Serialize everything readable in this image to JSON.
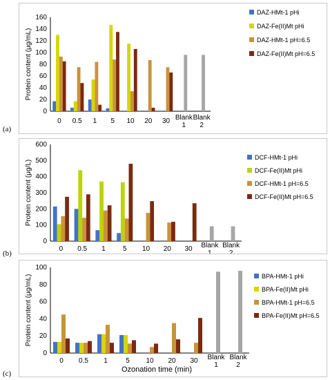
{
  "chart_data": [
    {
      "type": "bar",
      "panel_label": "(a)",
      "ylabel": "Protein content (μg/mL)",
      "xlabel": "",
      "ylim": [
        0,
        160
      ],
      "yticks": [
        0,
        20,
        40,
        60,
        80,
        100,
        120,
        140,
        160
      ],
      "categories": [
        "0",
        "0.5",
        "1",
        "5",
        "10",
        "20",
        "30",
        "Blank 1",
        "Blank 2"
      ],
      "series": [
        {
          "name": "DAZ-HMt-1 pHi",
          "color": "#4472C4",
          "values": [
            17,
            6,
            20,
            5,
            null,
            null,
            null,
            null,
            null
          ]
        },
        {
          "name": "DAZ-Fe(II)Mt pHi",
          "color": "#D6D600",
          "values": [
            130,
            17,
            54,
            147,
            115,
            null,
            null,
            null,
            null
          ]
        },
        {
          "name": "DAZ-HMt-1 pH=6.5",
          "color": "#C9933B",
          "values": [
            93,
            75,
            84,
            88,
            34,
            87,
            75,
            96,
            96
          ]
        },
        {
          "name": "DAZ-Fe(II)Mt pH=6.5",
          "color": "#7B2A10",
          "values": [
            85,
            48,
            11,
            135,
            106,
            6,
            66,
            null,
            null
          ]
        }
      ]
    },
    {
      "type": "bar",
      "panel_label": "(b)",
      "ylabel": "Protein content (μg/L)",
      "xlabel": "",
      "ylim": [
        0,
        600
      ],
      "yticks": [
        0,
        100,
        200,
        300,
        400,
        500,
        600
      ],
      "categories": [
        "0",
        "0.5",
        "1",
        "5",
        "10",
        "20",
        "30",
        "Blank 1",
        "Blank 2"
      ],
      "series": [
        {
          "name": "DCF-HMt-1 pHi",
          "color": "#4472C4",
          "values": [
            215,
            200,
            68,
            50,
            null,
            null,
            null,
            null,
            null
          ]
        },
        {
          "name": "DCF-Fe(II)Mt pHi",
          "color": "#BCD400",
          "values": [
            105,
            440,
            370,
            365,
            null,
            null,
            null,
            null,
            null
          ]
        },
        {
          "name": "DCF-HMt-1 pH=6.5",
          "color": "#C9933B",
          "values": [
            155,
            145,
            190,
            140,
            175,
            115,
            null,
            92,
            92
          ]
        },
        {
          "name": "DCF-Fe(II)Mt pH=6.5",
          "color": "#7B2A10",
          "values": [
            275,
            290,
            222,
            480,
            248,
            120,
            235,
            null,
            null
          ]
        }
      ]
    },
    {
      "type": "bar",
      "panel_label": "(c)",
      "ylabel": "Protein content (μg/mL)",
      "xlabel": "Ozonation time (min)",
      "ylim": [
        0,
        100
      ],
      "yticks": [
        0,
        20,
        40,
        60,
        80,
        100
      ],
      "categories": [
        "0",
        "0.5",
        "1",
        "5",
        "10",
        "20",
        "30",
        "Blank 1",
        "Blank 2"
      ],
      "series": [
        {
          "name": "BPA-HMt-1 pHi",
          "color": "#4472C4",
          "values": [
            13,
            12,
            22,
            21,
            null,
            null,
            null,
            null,
            null
          ]
        },
        {
          "name": "BPA-Fe(II)Mt pHi",
          "color": "#D6D600",
          "values": [
            13,
            12,
            22,
            21,
            null,
            null,
            null,
            null,
            null
          ]
        },
        {
          "name": "BPA-HMt-1 pH=6.5",
          "color": "#C9933B",
          "values": [
            45,
            12,
            33,
            11,
            7,
            35,
            12,
            95,
            96
          ]
        },
        {
          "name": "BPA-Fe(II)Mt pH=6.5",
          "color": "#7B2A10",
          "values": [
            17,
            14,
            12,
            15,
            11,
            16,
            41,
            null,
            null
          ]
        }
      ]
    }
  ]
}
